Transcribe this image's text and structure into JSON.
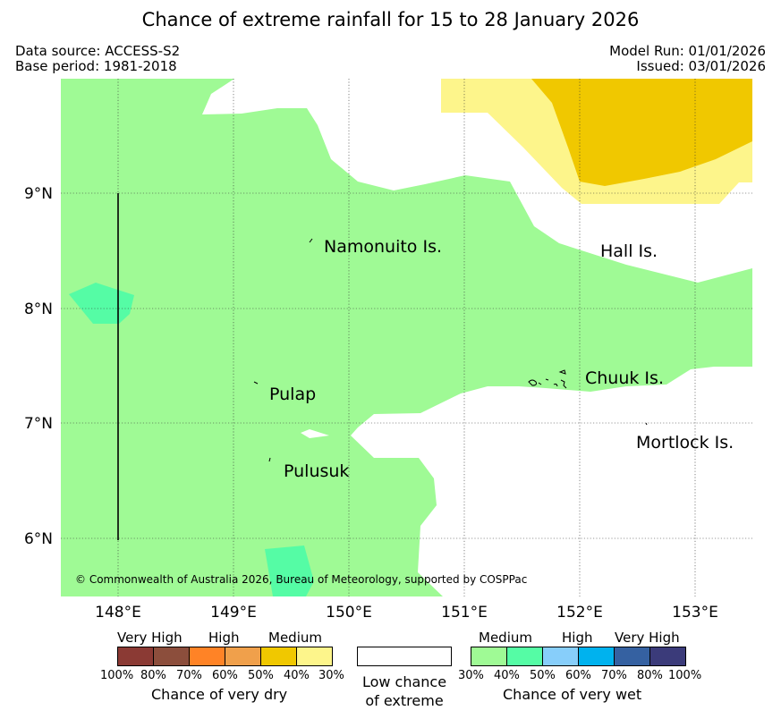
{
  "header": {
    "title": "Chance of extreme rainfall for 15 to 28 January 2026",
    "data_source": "Data source: ACCESS-S2",
    "base_period": "Base period: 1981-2018",
    "model_run": "Model Run: 01/01/2026",
    "issued": "Issued: 03/01/2026"
  },
  "map": {
    "lat_ticks": [
      "9°N",
      "8°N",
      "7°N",
      "6°N"
    ],
    "lon_ticks": [
      "148°E",
      "149°E",
      "150°E",
      "151°E",
      "152°E",
      "153°E"
    ],
    "places": {
      "namonuito": "Namonuito Is.",
      "hall": "Hall Is.",
      "chuuk": "Chuuk Is.",
      "pulap": "Pulap",
      "mortlock": "Mortlock Is.",
      "pulusuk": "Pulusuk"
    },
    "copyright": "© Commonwealth of Australia 2026, Bureau of Meteorology, supported by COSPPac"
  },
  "legend": {
    "dry": {
      "very_high": "Very High",
      "high": "High",
      "medium": "Medium",
      "ticks": [
        "100%",
        "80%",
        "70%",
        "60%",
        "50%",
        "40%",
        "30%"
      ],
      "caption": "Chance of very dry",
      "colors": [
        "#8b3a34",
        "#8c4e3c",
        "#ff8326",
        "#f0a04b",
        "#f0c800",
        "#fdf58b"
      ]
    },
    "low": {
      "line1": "Low chance",
      "line2": "of extreme"
    },
    "wet": {
      "medium": "Medium",
      "high": "High",
      "very_high": "Very High",
      "ticks": [
        "30%",
        "40%",
        "50%",
        "60%",
        "70%",
        "80%",
        "100%"
      ],
      "caption": "Chance of very wet",
      "colors": [
        "#9ffa95",
        "#55fca5",
        "#87cefa",
        "#00b2ee",
        "#3561a1",
        "#3b3b7a"
      ]
    }
  }
}
